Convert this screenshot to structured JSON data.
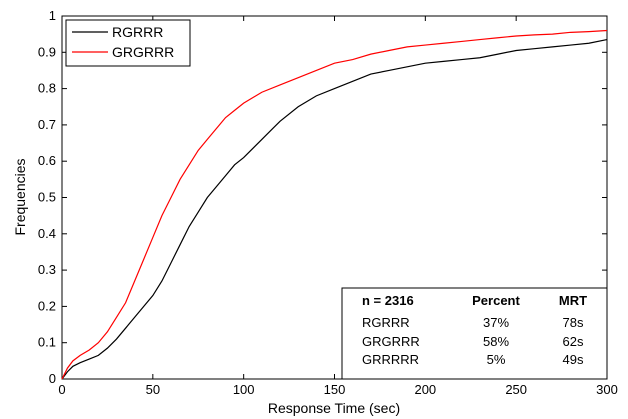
{
  "chart_data": {
    "type": "line",
    "title": "",
    "xlabel": "Response Time (sec)",
    "ylabel": "Frequencies",
    "xlim": [
      0,
      300
    ],
    "ylim": [
      0,
      1
    ],
    "xticks": [
      "0",
      "50",
      "100",
      "150",
      "200",
      "250",
      "300"
    ],
    "yticks": [
      "0",
      "0.1",
      "0.2",
      "0.3",
      "0.4",
      "0.5",
      "0.6",
      "0.7",
      "0.8",
      "0.9",
      "1"
    ],
    "grid": false,
    "legend_position": "top-left",
    "series": [
      {
        "name": "RGRRR",
        "color": "#000000",
        "x": [
          0,
          3,
          6,
          10,
          15,
          20,
          25,
          30,
          35,
          40,
          45,
          50,
          55,
          60,
          65,
          70,
          75,
          80,
          85,
          90,
          95,
          100,
          110,
          120,
          130,
          140,
          150,
          160,
          170,
          180,
          190,
          200,
          210,
          220,
          230,
          240,
          250,
          260,
          270,
          280,
          290,
          300
        ],
        "y": [
          0,
          0.02,
          0.035,
          0.045,
          0.055,
          0.065,
          0.085,
          0.11,
          0.14,
          0.17,
          0.2,
          0.23,
          0.27,
          0.32,
          0.37,
          0.42,
          0.46,
          0.5,
          0.53,
          0.56,
          0.59,
          0.61,
          0.66,
          0.71,
          0.75,
          0.78,
          0.8,
          0.82,
          0.84,
          0.85,
          0.86,
          0.87,
          0.875,
          0.88,
          0.885,
          0.895,
          0.905,
          0.91,
          0.915,
          0.92,
          0.925,
          0.935
        ]
      },
      {
        "name": "GRGRRR",
        "color": "#ff0000",
        "x": [
          0,
          3,
          6,
          10,
          15,
          20,
          25,
          30,
          35,
          40,
          45,
          50,
          55,
          60,
          65,
          70,
          75,
          80,
          85,
          90,
          95,
          100,
          110,
          120,
          130,
          140,
          150,
          160,
          170,
          180,
          190,
          200,
          210,
          220,
          230,
          240,
          250,
          260,
          270,
          280,
          290,
          300
        ],
        "y": [
          0,
          0.03,
          0.05,
          0.065,
          0.08,
          0.1,
          0.13,
          0.17,
          0.21,
          0.27,
          0.33,
          0.39,
          0.45,
          0.5,
          0.55,
          0.59,
          0.63,
          0.66,
          0.69,
          0.72,
          0.74,
          0.76,
          0.79,
          0.81,
          0.83,
          0.85,
          0.87,
          0.88,
          0.895,
          0.905,
          0.915,
          0.92,
          0.925,
          0.93,
          0.935,
          0.94,
          0.945,
          0.948,
          0.95,
          0.955,
          0.957,
          0.96
        ]
      }
    ],
    "stats_table": {
      "headers": [
        "n = 2316",
        "Percent",
        "MRT"
      ],
      "rows": [
        [
          "RGRRR",
          "37%",
          "78s"
        ],
        [
          "GRGRRR",
          "58%",
          "62s"
        ],
        [
          "GRRRRR",
          "5%",
          "49s"
        ]
      ],
      "position": "bottom-right"
    }
  }
}
